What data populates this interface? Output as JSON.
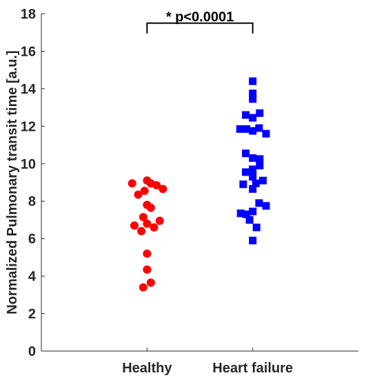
{
  "chart_data": {
    "type": "scatter",
    "categories": [
      "Healthy",
      "Heart failure"
    ],
    "ylabel": "Normalized Pulmonary transit time [a.u.]",
    "ylim": [
      0,
      18
    ],
    "yticks": [
      0,
      2,
      4,
      6,
      8,
      10,
      12,
      14,
      16,
      18
    ],
    "grid": false,
    "series": [
      {
        "category": "Healthy",
        "marker": "circle",
        "color": "#ff0000",
        "points": [
          {
            "x": -0.47,
            "y": 8.95
          },
          {
            "x": 0.0,
            "y": 9.1
          },
          {
            "x": 0.12,
            "y": 8.95
          },
          {
            "x": 0.3,
            "y": 8.85
          },
          {
            "x": 0.5,
            "y": 8.65
          },
          {
            "x": -0.08,
            "y": 8.55
          },
          {
            "x": -0.28,
            "y": 8.35
          },
          {
            "x": 0.0,
            "y": 7.8
          },
          {
            "x": 0.12,
            "y": 7.65
          },
          {
            "x": -0.12,
            "y": 7.15
          },
          {
            "x": 0.4,
            "y": 6.95
          },
          {
            "x": -0.4,
            "y": 6.7
          },
          {
            "x": 0.0,
            "y": 6.8
          },
          {
            "x": 0.22,
            "y": 6.6
          },
          {
            "x": -0.18,
            "y": 6.4
          },
          {
            "x": 0.0,
            "y": 5.2
          },
          {
            "x": 0.0,
            "y": 4.35
          },
          {
            "x": 0.12,
            "y": 3.65
          },
          {
            "x": -0.12,
            "y": 3.4
          }
        ]
      },
      {
        "category": "Heart failure",
        "marker": "square",
        "color": "#0000ff",
        "points": [
          {
            "x": 0.0,
            "y": 14.4
          },
          {
            "x": 0.0,
            "y": 13.75
          },
          {
            "x": 0.0,
            "y": 13.45
          },
          {
            "x": -0.22,
            "y": 12.6
          },
          {
            "x": 0.22,
            "y": 12.7
          },
          {
            "x": 0.0,
            "y": 12.45
          },
          {
            "x": -0.4,
            "y": 11.85
          },
          {
            "x": -0.2,
            "y": 11.85
          },
          {
            "x": 0.2,
            "y": 11.9
          },
          {
            "x": 0.0,
            "y": 11.75
          },
          {
            "x": 0.42,
            "y": 11.6
          },
          {
            "x": -0.22,
            "y": 10.55
          },
          {
            "x": 0.0,
            "y": 10.3
          },
          {
            "x": 0.22,
            "y": 10.25
          },
          {
            "x": 0.22,
            "y": 9.9
          },
          {
            "x": 0.0,
            "y": 9.7
          },
          {
            "x": -0.22,
            "y": 9.55
          },
          {
            "x": 0.0,
            "y": 9.3
          },
          {
            "x": 0.32,
            "y": 9.1
          },
          {
            "x": -0.3,
            "y": 8.9
          },
          {
            "x": 0.1,
            "y": 8.95
          },
          {
            "x": 0.0,
            "y": 8.65
          },
          {
            "x": 0.2,
            "y": 7.9
          },
          {
            "x": 0.42,
            "y": 7.75
          },
          {
            "x": 0.0,
            "y": 7.45
          },
          {
            "x": -0.38,
            "y": 7.35
          },
          {
            "x": -0.2,
            "y": 7.3
          },
          {
            "x": -0.1,
            "y": 7.0
          },
          {
            "x": 0.12,
            "y": 6.6
          },
          {
            "x": 0.0,
            "y": 5.9
          }
        ]
      }
    ],
    "annotations": [
      {
        "text": "* p<0.0001",
        "bracket_between": [
          "Healthy",
          "Heart failure"
        ],
        "bracket_y": 16.95,
        "bracket_top_y": 17.5
      }
    ]
  }
}
